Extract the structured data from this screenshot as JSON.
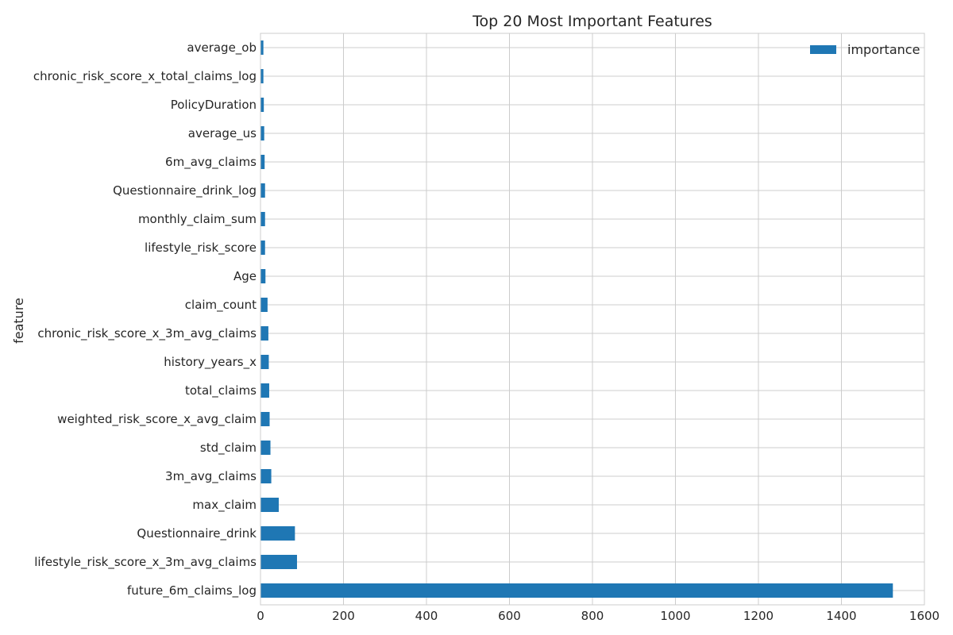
{
  "chart_data": {
    "type": "bar",
    "orientation": "horizontal",
    "title": "Top 20 Most Important Features",
    "ylabel": "feature",
    "xlabel": "",
    "xlim": [
      0,
      1600
    ],
    "xticks": [
      0,
      200,
      400,
      600,
      800,
      1000,
      1200,
      1400,
      1600
    ],
    "grid": true,
    "legend": {
      "placement": "top-right",
      "entries": [
        "importance"
      ]
    },
    "bar_color": "#1f77b4",
    "categories": [
      "future_6m_claims_log",
      "lifestyle_risk_score_x_3m_avg_claims",
      "Questionnaire_drink",
      "max_claim",
      "3m_avg_claims",
      "std_claim",
      "weighted_risk_score_x_avg_claim",
      "total_claims",
      "history_years_x",
      "chronic_risk_score_x_3m_avg_claims",
      "claim_count",
      "Age",
      "lifestyle_risk_score",
      "monthly_claim_sum",
      "Questionnaire_drink_log",
      "6m_avg_claims",
      "average_us",
      "PolicyDuration",
      "chronic_risk_score_x_total_claims_log",
      "average_ob"
    ],
    "series": [
      {
        "name": "importance",
        "values": [
          1524,
          88,
          83,
          44,
          26,
          24,
          22,
          21,
          20,
          19,
          17,
          12,
          11,
          11,
          11,
          10,
          9,
          8,
          7,
          7
        ]
      }
    ]
  }
}
